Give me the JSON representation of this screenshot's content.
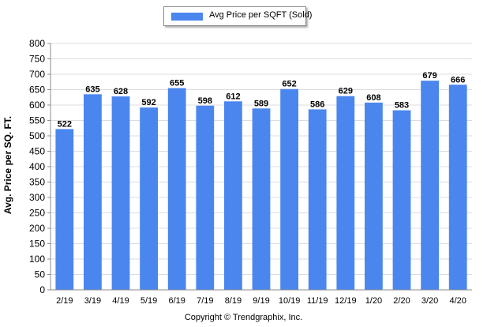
{
  "chart_data": {
    "type": "bar",
    "categories": [
      "2/19",
      "3/19",
      "4/19",
      "5/19",
      "6/19",
      "7/19",
      "8/19",
      "9/19",
      "10/19",
      "11/19",
      "12/19",
      "1/20",
      "2/20",
      "3/20",
      "4/20"
    ],
    "series": [
      {
        "name": "Avg Price per SQFT (Sold)",
        "values": [
          522,
          635,
          628,
          592,
          655,
          598,
          612,
          589,
          652,
          586,
          629,
          608,
          583,
          679,
          666
        ]
      }
    ],
    "title": "",
    "xlabel": "",
    "ylabel": "Avg. Price per SQ. FT.",
    "ylim": [
      0,
      800
    ],
    "yticks": [
      0,
      50,
      100,
      150,
      200,
      250,
      300,
      350,
      400,
      450,
      500,
      550,
      600,
      650,
      700,
      750,
      800
    ],
    "grid": true,
    "legend": "top-center",
    "data_labels": true
  },
  "colors": {
    "bar": "#4a86ee",
    "grid": "#dcdcdc",
    "axis": "#8c8c8c"
  },
  "footer": {
    "copyright": "Copyright © Trendgraphix, Inc."
  }
}
